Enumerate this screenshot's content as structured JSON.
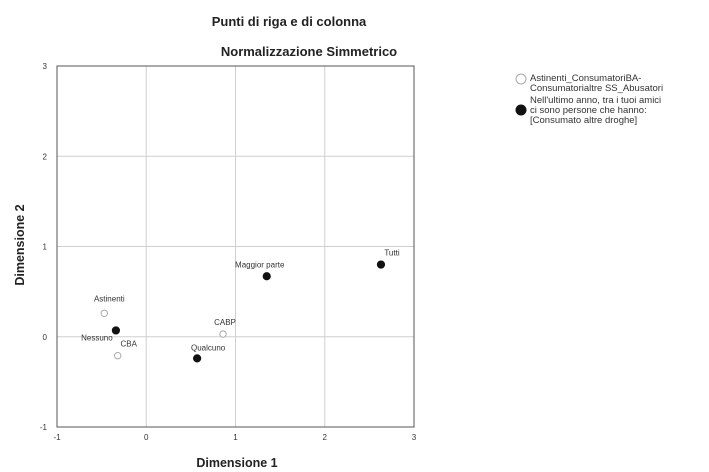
{
  "chart_data": {
    "type": "scatter",
    "title": "Punti di riga e di colonna",
    "subtitle": "Normalizzazione Simmetrico",
    "xlabel": "Dimensione 1",
    "ylabel": "Dimensione 2",
    "xlim": [
      -1,
      3
    ],
    "ylim": [
      -1,
      3
    ],
    "xticks": [
      "-1",
      "0",
      "1",
      "2",
      "3"
    ],
    "yticks": [
      "-1",
      "0",
      "1",
      "2",
      "3"
    ],
    "grid": true,
    "legend_position": "right",
    "series": [
      {
        "name": "Astinenti_ConsumatoriBA-Consumatoriatre SS_Abusatori",
        "legend_lines": [
          "Astinenti_ConsumatoriBA-",
          "Consumatorialtre SS_Abusatori"
        ],
        "marker": "open-circle",
        "color": "#aaaaaa",
        "points": [
          {
            "label": "Astinenti",
            "x": -0.47,
            "y": 0.26
          },
          {
            "label": "CBA",
            "x": -0.32,
            "y": -0.21
          },
          {
            "label": "CABP",
            "x": 0.86,
            "y": 0.03
          }
        ]
      },
      {
        "name": "Nell'ultimo anno, tra i tuoi amici ci sono persone che hanno: [Consumato altre droghe]",
        "legend_lines": [
          "Nell'ultimo anno, tra i tuoi amici",
          "ci sono persone che hanno:",
          "[Consumato altre droghe]"
        ],
        "marker": "filled-circle",
        "color": "#111111",
        "points": [
          {
            "label": "Nessuno",
            "x": -0.34,
            "y": 0.07
          },
          {
            "label": "Qualcuno",
            "x": 0.57,
            "y": -0.24
          },
          {
            "label": "Maggior parte",
            "x": 1.35,
            "y": 0.67
          },
          {
            "label": "Tutti",
            "x": 2.63,
            "y": 0.8
          }
        ]
      }
    ]
  }
}
